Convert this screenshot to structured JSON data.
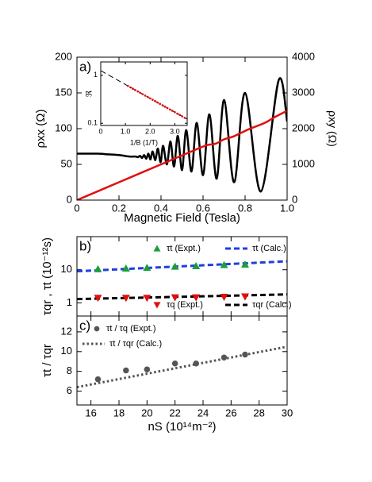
{
  "chart_data": [
    {
      "type": "line",
      "panel_label": "a)",
      "xlabel": "Magnetic Field (Tesla)",
      "ylabel": "ρxx (Ω)",
      "y2label": "ρxy (Ω)",
      "xlim": [
        0,
        1.0
      ],
      "ylim": [
        0,
        200
      ],
      "y2lim": [
        0,
        4000
      ],
      "xticks": [
        0,
        {
          "value": 0.2,
          "label": "0.2"
        },
        {
          "value": 0.4,
          "label": "0.4"
        },
        {
          "value": 0.6,
          "label": "0.6"
        },
        {
          "value": 0.8,
          "label": "0.8"
        },
        {
          "value": 1.0,
          "label": "1.0"
        }
      ],
      "yticks": [
        0,
        50,
        100,
        150,
        200
      ],
      "y2ticks": [
        0,
        1000,
        2000,
        3000,
        4000
      ],
      "series": [
        {
          "color": "#000000",
          "linestyle": "solid",
          "x": [
            0,
            0.05,
            0.1,
            0.15,
            0.2,
            0.25,
            0.28,
            0.29,
            0.3,
            0.31,
            0.32,
            0.33,
            0.34,
            0.35,
            0.36,
            0.373,
            0.385,
            0.398,
            0.41,
            0.428,
            0.445,
            0.462,
            0.48,
            0.5,
            0.52,
            0.545,
            0.57,
            0.6,
            0.63,
            0.665,
            0.7,
            0.748,
            0.8,
            0.875,
            0.96,
            1.0
          ],
          "values": [
            65,
            65,
            65,
            64,
            63,
            61,
            61,
            60,
            62,
            59,
            63,
            58,
            65,
            57,
            68,
            56,
            72,
            53,
            76,
            50,
            82,
            47,
            90,
            42,
            98,
            40,
            108,
            35,
            120,
            30,
            140,
            25,
            150,
            12,
            168,
            110
          ]
        },
        {
          "color": "#e01010",
          "linestyle": "solid",
          "axis": "y2",
          "x": [
            0,
            0.2,
            0.4,
            0.5,
            0.58,
            0.62,
            0.66,
            0.7,
            0.74,
            0.78,
            0.82,
            0.86,
            0.9,
            0.94,
            1.0
          ],
          "values": [
            0,
            500,
            1000,
            1250,
            1450,
            1540,
            1580,
            1700,
            1770,
            1880,
            1990,
            2080,
            2180,
            2320,
            2500
          ]
        }
      ]
    },
    {
      "type": "scatter",
      "inset": true,
      "xlabel": "1/B (1/T)",
      "ylabel": "ℜ",
      "log_y": true,
      "xlim": [
        0,
        3.5
      ],
      "ylim": [
        0.09,
        1.9
      ],
      "xticks": [
        0,
        {
          "value": 1,
          "label": "1.0"
        },
        {
          "value": 2,
          "label": "2.0"
        },
        {
          "value": 3,
          "label": "3.0"
        }
      ],
      "yticks": [
        0.1,
        1
      ],
      "series": [
        {
          "color": "#000000",
          "linestyle": "dashed",
          "x": [
            0,
            3.5
          ],
          "values": [
            1.25,
            0.122
          ]
        },
        {
          "color": "#e01010",
          "marker": "circle",
          "x": [
            1.1,
            1.2,
            1.3,
            1.4,
            1.5,
            1.6,
            1.7,
            1.8,
            1.9,
            2.0,
            2.1,
            2.2,
            2.3,
            2.4,
            2.5,
            2.6,
            2.7,
            2.8,
            2.9,
            3.0,
            3.1,
            3.2,
            3.3,
            3.4
          ],
          "values": [
            0.601,
            0.562,
            0.526,
            0.492,
            0.461,
            0.431,
            0.403,
            0.377,
            0.353,
            0.33,
            0.309,
            0.289,
            0.271,
            0.253,
            0.237,
            0.222,
            0.207,
            0.194,
            0.182,
            0.17,
            0.159,
            0.149,
            0.139,
            0.13
          ]
        }
      ]
    },
    {
      "type": "scatter",
      "panel_label": "b)",
      "ylabel": "τqr , τt (10⁻¹²s)",
      "log_y": true,
      "show_xtick_labels": false,
      "xlim": [
        15,
        30
      ],
      "ylim": [
        0.4,
        100
      ],
      "xticks": [
        16,
        18,
        20,
        22,
        24,
        26,
        28,
        30
      ],
      "yticks": [
        1,
        10
      ],
      "series": [
        {
          "name": "τt (Expt.)",
          "color": "#1a9e3c",
          "marker": "triangle-up",
          "x": [
            16.5,
            18.5,
            20,
            22,
            23.5,
            25.5,
            27
          ],
          "values": [
            10.5,
            11,
            11.5,
            12.5,
            13,
            14,
            14.5
          ]
        },
        {
          "name": "τt (Calc.)",
          "color": "#1f3fe0",
          "linestyle": "dashed",
          "x": [
            15,
            30
          ],
          "values": [
            9,
            18
          ]
        },
        {
          "name": "τq (Expt.)",
          "color": "#e01010",
          "marker": "triangle-down",
          "x": [
            16.5,
            18.5,
            20,
            22,
            23.5,
            25.5,
            27
          ],
          "values": [
            1.4,
            1.4,
            1.4,
            1.45,
            1.45,
            1.5,
            1.55
          ]
        },
        {
          "name": "τqr (Calc.)",
          "color": "#000000",
          "linestyle": "dashed",
          "x": [
            15,
            30
          ],
          "values": [
            1.3,
            1.8
          ]
        }
      ]
    },
    {
      "type": "scatter",
      "panel_label": "c)",
      "xlabel": "nS (10¹⁴m⁻²)",
      "ylabel": "τt / τqr",
      "xlim": [
        15,
        30
      ],
      "ylim": [
        4.6,
        13.6
      ],
      "xticks": [
        16,
        18,
        20,
        22,
        24,
        26,
        28,
        30
      ],
      "yticks": [
        6,
        8,
        10,
        12
      ],
      "series": [
        {
          "name": "τt / τq (Expt.)",
          "color": "#555555",
          "marker": "circle",
          "x": [
            16.5,
            18.5,
            20,
            22,
            23.5,
            25.5,
            27
          ],
          "values": [
            7.2,
            8.1,
            8.2,
            8.8,
            8.8,
            9.4,
            9.7
          ]
        },
        {
          "name": "τt / τqr (Calc.)",
          "color": "#555555",
          "linestyle": "dotted",
          "x": [
            15,
            30
          ],
          "values": [
            6.4,
            10.5
          ]
        }
      ]
    }
  ]
}
